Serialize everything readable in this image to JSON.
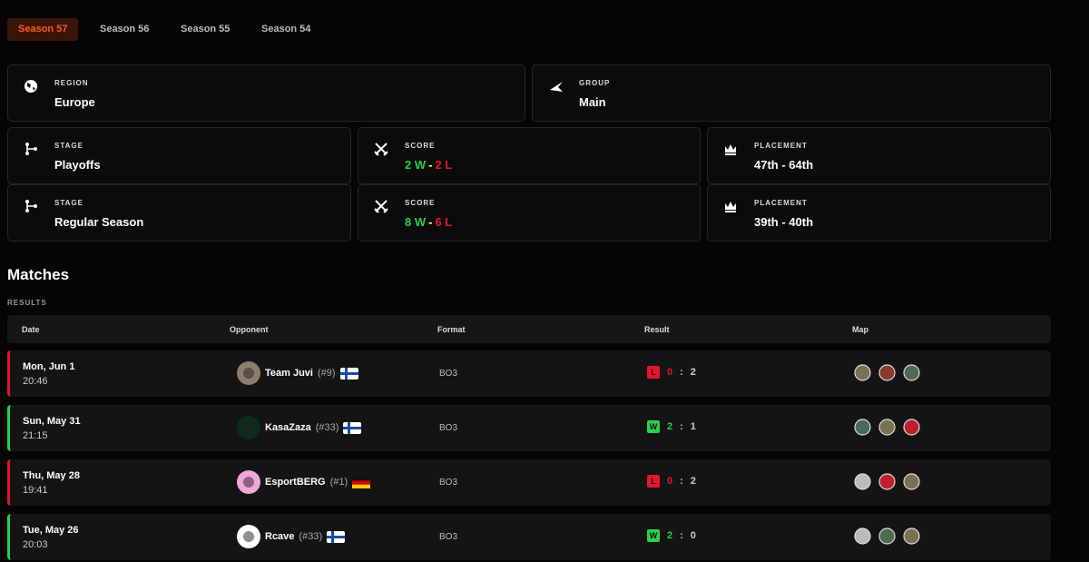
{
  "tabs": [
    "Season 57",
    "Season 56",
    "Season 55",
    "Season 54"
  ],
  "info_cards": [
    {
      "label": "REGION",
      "value": "Europe"
    },
    {
      "label": "GROUP",
      "value": "Main"
    }
  ],
  "stages": [
    {
      "stage_label": "STAGE",
      "stage": "Playoffs",
      "score_label": "SCORE",
      "wins": "2 W",
      "separator": "-",
      "losses": "2 L",
      "placement_label": "PLACEMENT",
      "placement": "47th - 64th"
    },
    {
      "stage_label": "STAGE",
      "stage": "Regular Season",
      "score_label": "SCORE",
      "wins": "8 W",
      "separator": "-",
      "losses": "6 L",
      "placement_label": "PLACEMENT",
      "placement": "39th - 40th"
    }
  ],
  "matches": {
    "title": "Matches",
    "subtitle": "RESULTS",
    "columns": [
      "Date",
      "Opponent",
      "Format",
      "Result",
      "Map"
    ],
    "rows": [
      {
        "date": "Mon, Jun 1",
        "time": "20:46",
        "team": "Team Juvi",
        "rank": "(#9)",
        "format": "BO3",
        "outcome": "L",
        "score_own": 0,
        "score_separator": ":",
        "score_opp": 2
      },
      {
        "date": "Sun, May 31",
        "time": "21:15",
        "team": "KasaZaza",
        "rank": "(#33)",
        "format": "BO3",
        "outcome": "W",
        "score_own": 2,
        "score_separator": ":",
        "score_opp": 1
      },
      {
        "date": "Thu, May 28",
        "time": "19:41",
        "team": "EsportBERG",
        "rank": "(#1)",
        "format": "BO3",
        "outcome": "L",
        "score_own": 0,
        "score_separator": ":",
        "score_opp": 2
      },
      {
        "date": "Tue, May 26",
        "time": "20:03",
        "team": "Rcave",
        "rank": "(#33)",
        "format": "BO3",
        "outcome": "W",
        "score_own": 2,
        "score_separator": ":",
        "score_opp": 0
      }
    ]
  }
}
